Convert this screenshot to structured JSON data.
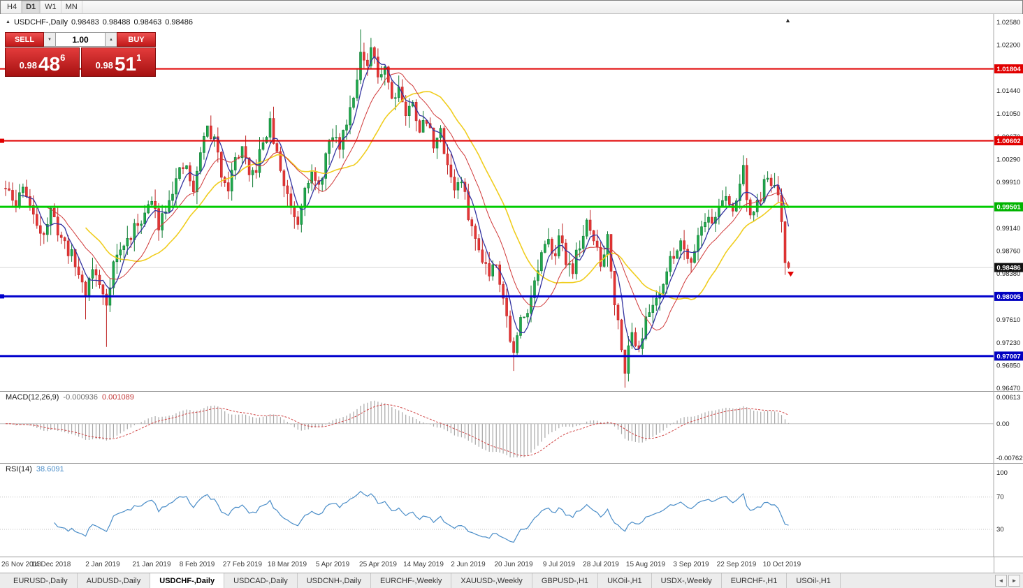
{
  "toolbar": {
    "timeframes": [
      "H4",
      "D1",
      "W1",
      "MN"
    ],
    "active": "D1"
  },
  "icons": {
    "collapse_arrow": "▲",
    "shift_marker": "▲",
    "spinner_up": "▲",
    "spinner_down": "▼",
    "tab_scroll_left": "◄",
    "tab_scroll_right": "►",
    "sell_arrow": "▼"
  },
  "chart": {
    "symbol_period": "USDCHF-,Daily",
    "open": "0.98483",
    "high": "0.98488",
    "low": "0.98463",
    "close": "0.98486"
  },
  "trade_panel": {
    "sell_label": "SELL",
    "buy_label": "BUY",
    "volume": "1.00",
    "sell_price": {
      "base": "0.98",
      "big": "48",
      "sup": "6"
    },
    "buy_price": {
      "base": "0.98",
      "big": "51",
      "sup": "1"
    }
  },
  "date_axis": {
    "labels": [
      "26 Nov 2018",
      "14 Dec 2018",
      "2 Jan 2019",
      "21 Jan 2019",
      "8 Feb 2019",
      "27 Feb 2019",
      "18 Mar 2019",
      "5 Apr 2019",
      "25 Apr 2019",
      "14 May 2019",
      "2 Jun 2019",
      "20 Jun 2019",
      "9 Jul 2019",
      "28 Jul 2019",
      "15 Aug 2019",
      "3 Sep 2019",
      "22 Sep 2019",
      "10 Oct 2019"
    ],
    "x": [
      8,
      73,
      147,
      217,
      282,
      347,
      411,
      476,
      541,
      606,
      670,
      735,
      800,
      860,
      924,
      989,
      1054,
      1119
    ]
  },
  "tabs": {
    "items": [
      "EURUSD-,Daily",
      "AUDUSD-,Daily",
      "USDCHF-,Daily",
      "USDCAD-,Daily",
      "USDCNH-,Daily",
      "EURCHF-,Weekly",
      "XAUUSD-,Weekly",
      "GBPUSD-,H1",
      "UKOil-,H1",
      "USDX-,Weekly",
      "EURCHF-,H1",
      "USOil-,H1"
    ],
    "active_index": 2
  },
  "chart_data": {
    "type": "candlestick",
    "symbol": "USDCHF",
    "period": "Daily",
    "candle_count": 226,
    "seed": 11,
    "close_noise": 0.0011,
    "wick_noise": 0.0021,
    "last_close": 0.98486,
    "x_start": 8,
    "x_step": 4.98,
    "y_range": [
      0.9647,
      1.0258
    ],
    "colors": {
      "background": "#ffffff",
      "up": "#1fa94d",
      "up_border": "#0f7c33",
      "down": "#e53535",
      "down_border": "#bf2626"
    },
    "close_anchors": [
      [
        0,
        0.998
      ],
      [
        3,
        0.995
      ],
      [
        5,
        0.999
      ],
      [
        8,
        0.993
      ],
      [
        11,
        0.9908
      ],
      [
        13,
        0.994
      ],
      [
        16,
        0.9898
      ],
      [
        19,
        0.9868
      ],
      [
        21,
        0.9838
      ],
      [
        23,
        0.9808
      ],
      [
        25,
        0.9848
      ],
      [
        27,
        0.9818
      ],
      [
        29,
        0.979
      ],
      [
        31,
        0.9858
      ],
      [
        34,
        0.9885
      ],
      [
        37,
        0.9912
      ],
      [
        40,
        0.994
      ],
      [
        42,
        0.9958
      ],
      [
        44,
        0.9922
      ],
      [
        47,
        0.9968
      ],
      [
        50,
        1.0005
      ],
      [
        52,
        1.0018
      ],
      [
        54,
        0.997
      ],
      [
        56,
        1.0045
      ],
      [
        58,
        1.0082
      ],
      [
        60,
        1.006
      ],
      [
        62,
        1.0008
      ],
      [
        64,
        0.9985
      ],
      [
        66,
        1.0028
      ],
      [
        68,
        1.0048
      ],
      [
        70,
        0.9995
      ],
      [
        72,
        1.0015
      ],
      [
        74,
        1.0058
      ],
      [
        76,
        1.0088
      ],
      [
        78,
        1.0035
      ],
      [
        80,
        0.9988
      ],
      [
        82,
        0.9952
      ],
      [
        84,
        0.9925
      ],
      [
        86,
        0.9992
      ],
      [
        88,
        1.0002
      ],
      [
        90,
        0.9978
      ],
      [
        92,
        1.0035
      ],
      [
        94,
        1.0068
      ],
      [
        96,
        1.0052
      ],
      [
        98,
        1.0095
      ],
      [
        100,
        1.014
      ],
      [
        102,
        1.0205
      ],
      [
        104,
        1.0175
      ],
      [
        105,
        1.0215
      ],
      [
        107,
        1.0168
      ],
      [
        109,
        1.0188
      ],
      [
        111,
        1.0132
      ],
      [
        113,
        1.0152
      ],
      [
        115,
        1.0105
      ],
      [
        117,
        1.0122
      ],
      [
        119,
        1.0082
      ],
      [
        121,
        1.0092
      ],
      [
        123,
        1.0058
      ],
      [
        125,
        1.0072
      ],
      [
        127,
        1.0022
      ],
      [
        129,
        0.9982
      ],
      [
        131,
        0.9992
      ],
      [
        133,
        0.9938
      ],
      [
        135,
        0.9892
      ],
      [
        137,
        0.9868
      ],
      [
        139,
        0.9842
      ],
      [
        141,
        0.9862
      ],
      [
        143,
        0.9798
      ],
      [
        145,
        0.9732
      ],
      [
        146,
        0.9702
      ],
      [
        148,
        0.9762
      ],
      [
        150,
        0.9782
      ],
      [
        152,
        0.9822
      ],
      [
        154,
        0.9868
      ],
      [
        156,
        0.9888
      ],
      [
        158,
        0.9878
      ],
      [
        159,
        0.9898
      ],
      [
        161,
        0.9862
      ],
      [
        163,
        0.9848
      ],
      [
        165,
        0.9888
      ],
      [
        167,
        0.9918
      ],
      [
        169,
        0.9898
      ],
      [
        171,
        0.9852
      ],
      [
        172,
        0.9872
      ],
      [
        173,
        0.9908
      ],
      [
        175,
        0.9792
      ],
      [
        177,
        0.9722
      ],
      [
        178,
        0.9682
      ],
      [
        180,
        0.9738
      ],
      [
        182,
        0.9718
      ],
      [
        184,
        0.9758
      ],
      [
        186,
        0.9788
      ],
      [
        188,
        0.9812
      ],
      [
        190,
        0.9842
      ],
      [
        192,
        0.9872
      ],
      [
        194,
        0.9892
      ],
      [
        197,
        0.9862
      ],
      [
        199,
        0.9902
      ],
      [
        201,
        0.9932
      ],
      [
        203,
        0.9922
      ],
      [
        205,
        0.9952
      ],
      [
        207,
        0.9962
      ],
      [
        209,
        0.9942
      ],
      [
        210,
        0.9962
      ],
      [
        211,
        0.9992
      ],
      [
        212,
        1.0012
      ],
      [
        214,
        0.9932
      ],
      [
        216,
        0.9952
      ],
      [
        218,
        0.9985
      ],
      [
        220,
        0.9992
      ],
      [
        222,
        0.9968
      ],
      [
        223,
        0.9915
      ],
      [
        224,
        0.986
      ],
      [
        225,
        0.98486
      ]
    ],
    "wick_overrides": [
      {
        "i": 23,
        "low": 0.9762
      },
      {
        "i": 29,
        "low": 0.9716
      },
      {
        "i": 102,
        "high": 1.0246
      },
      {
        "i": 105,
        "high": 1.0232
      },
      {
        "i": 146,
        "low": 0.9676
      },
      {
        "i": 178,
        "low": 0.9648
      },
      {
        "i": 212,
        "high": 1.0036
      }
    ],
    "moving_averages": [
      {
        "period": 24,
        "color": "#f0cd1e",
        "width": 1.6
      },
      {
        "period": 13,
        "color": "#d03a3a",
        "width": 1.0
      },
      {
        "period": 5,
        "color": "#3333a0",
        "width": 1.3
      }
    ],
    "horizontal_lines": [
      {
        "price": 1.01804,
        "color": "#e10000",
        "width": 2,
        "handle": false
      },
      {
        "price": 1.00602,
        "color": "#e10000",
        "width": 2,
        "handle": true
      },
      {
        "price": 0.99501,
        "color": "#00cc00",
        "width": 3,
        "handle": false
      },
      {
        "price": 0.98005,
        "color": "#0000cd",
        "width": 3,
        "handle": true
      },
      {
        "price": 0.97007,
        "color": "#0000cd",
        "width": 3,
        "handle": false
      }
    ],
    "last_price_line_color": "#d8d8d8",
    "price_scale": {
      "ticks": [
        "1.02580",
        "1.02200",
        "1.01440",
        "1.01050",
        "1.00670",
        "1.00290",
        "0.99910",
        "0.99140",
        "0.98760",
        "0.98380",
        "0.97610",
        "0.97230",
        "0.96850",
        "0.96470"
      ],
      "badges": [
        {
          "label": "1.01804",
          "color": "#e10000"
        },
        {
          "label": "1.00602",
          "color": "#e10000"
        },
        {
          "label": "0.99501",
          "color": "#00b400"
        },
        {
          "label": "0.98486",
          "color": "#111111"
        },
        {
          "label": "0.98005",
          "color": "#0000c0"
        },
        {
          "label": "0.97007",
          "color": "#0000c0"
        }
      ]
    },
    "macd": {
      "name": "MACD(12,26,9)",
      "value_main": "-0.000936",
      "value_signal": "0.001089",
      "fast": 12,
      "slow": 26,
      "signal": 9,
      "hist_color": "#a8a8a8",
      "signal_color": "#d04545",
      "zero_color": "#c0c0c0",
      "scale_max": 0.00613,
      "scale_min": -0.00762,
      "scale_labels": [
        "0.00613",
        "0.00",
        "-0.00762"
      ]
    },
    "rsi": {
      "name": "RSI(14)",
      "value": "38.6091",
      "period": 14,
      "color": "#4a8dc8",
      "levels": [
        70,
        30
      ],
      "level_color": "#c0c0c0",
      "scale_labels": [
        "100",
        "70",
        "30"
      ],
      "scale_values": [
        100,
        70,
        30
      ]
    }
  }
}
